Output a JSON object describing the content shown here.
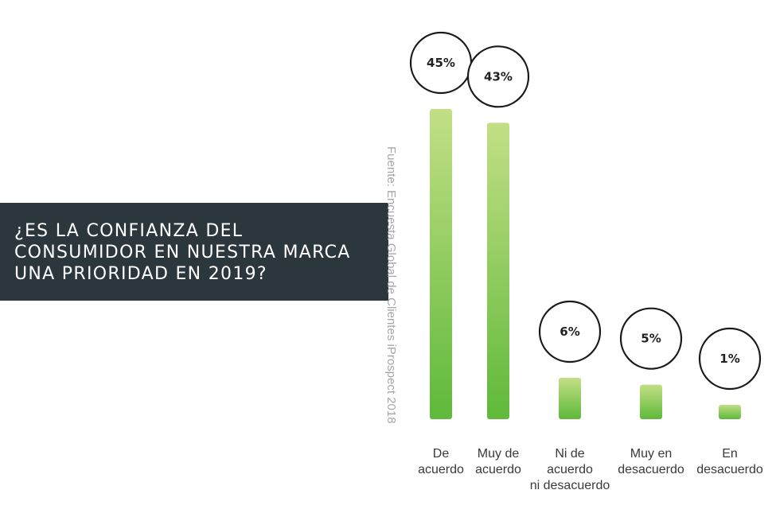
{
  "title_lines": [
    "¿ES LA CONFIANZA DEL",
    "CONSUMIDOR EN NUESTRA MARCA",
    "UNA PRIORIDAD EN 2019?"
  ],
  "source": "Fuente: Encuesta Global de Clientes iProspect 2018",
  "chart_data": {
    "type": "bar",
    "categories": [
      [
        "De",
        "acuerdo"
      ],
      [
        "Muy de",
        "acuerdo"
      ],
      [
        "Ni de",
        "acuerdo",
        "ni desacuerdo"
      ],
      [
        "Muy en",
        "desacuerdo"
      ],
      [
        "En",
        "desacuerdo"
      ]
    ],
    "values": [
      45,
      43,
      6,
      5,
      1
    ],
    "value_labels": [
      "45%",
      "43%",
      "6%",
      "5%",
      "1%"
    ],
    "ylim": [
      0,
      45
    ],
    "grid": false,
    "colors": {
      "bar_top": "#c2df86",
      "bar_bottom": "#5fb93a",
      "circle_stroke": "#1a1a1a"
    }
  }
}
